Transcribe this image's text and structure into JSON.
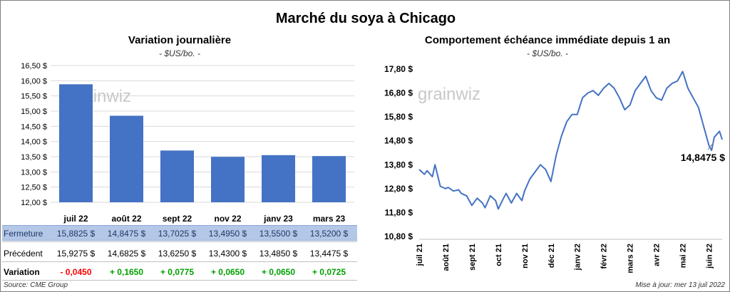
{
  "title": "Marché du soya à Chicago",
  "footer": {
    "source": "Source: CME Group",
    "updated": "Mise à jour: mer 13 juil 2022"
  },
  "watermark": "grainwiz",
  "colors": {
    "bar": "#4472c4",
    "line": "#4472c4",
    "negative": "#ff0000",
    "positive": "#00a000",
    "close_row": "#b4c7e7"
  },
  "left": {
    "title": "Variation  journalière",
    "unit": "- $US/bo. -",
    "table": {
      "rows": [
        {
          "label": "Fermeture",
          "values": [
            "15,8825  $",
            "14,8475  $",
            "13,7025  $",
            "13,4950  $",
            "13,5500  $",
            "13,5200  $"
          ]
        },
        {
          "label": "Précédent",
          "values": [
            "15,9275  $",
            "14,6825  $",
            "13,6250  $",
            "13,4300  $",
            "13,4850  $",
            "13,4475  $"
          ]
        },
        {
          "label": "Variation",
          "values": [
            "- 0,0450",
            "+ 0,1650",
            "+ 0,0775",
            "+ 0,0650",
            "+ 0,0650",
            "+ 0,0725"
          ]
        }
      ]
    }
  },
  "right": {
    "title": "Comportement  échéance immédiate depuis 1 an",
    "unit": "- $US/bo. -",
    "last_label": "14,8475 $"
  },
  "chart_data": [
    {
      "type": "bar",
      "categories": [
        "juil 22",
        "août 22",
        "sept 22",
        "nov 22",
        "janv 23",
        "mars 23"
      ],
      "values": [
        15.8825,
        14.8475,
        13.7025,
        13.495,
        13.55,
        13.52
      ],
      "ylim": [
        12,
        16.5
      ],
      "yticks": [
        12,
        12.5,
        13,
        13.5,
        14,
        14.5,
        15,
        15.5,
        16,
        16.5
      ],
      "ytick_labels": [
        "12,00 $",
        "12,50 $",
        "13,00 $",
        "13,50 $",
        "14,00 $",
        "14,50 $",
        "15,00 $",
        "15,50 $",
        "16,00 $",
        "16,50 $"
      ],
      "grid": true
    },
    {
      "type": "line",
      "x_labels": [
        "juil 21",
        "août 21",
        "sept 21",
        "oct 21",
        "nov 21",
        "déc 21",
        "janv 22",
        "févr 22",
        "mars 22",
        "avr 22",
        "mai 22",
        "juin 22"
      ],
      "x": [
        0,
        0.2,
        0.3,
        0.5,
        0.6,
        0.8,
        1.0,
        1.1,
        1.3,
        1.5,
        1.6,
        1.8,
        2.0,
        2.2,
        2.4,
        2.5,
        2.7,
        2.9,
        3.0,
        3.2,
        3.3,
        3.5,
        3.7,
        3.9,
        4.0,
        4.2,
        4.4,
        4.6,
        4.8,
        5.0,
        5.2,
        5.4,
        5.6,
        5.8,
        6.0,
        6.2,
        6.4,
        6.6,
        6.8,
        7.0,
        7.2,
        7.4,
        7.6,
        7.8,
        8.0,
        8.2,
        8.4,
        8.6,
        8.8,
        9.0,
        9.2,
        9.4,
        9.6,
        9.8,
        10.0,
        10.2,
        10.4,
        10.6,
        10.8,
        11.0,
        11.1,
        11.2,
        11.4,
        11.5
      ],
      "y": [
        13.6,
        13.4,
        13.55,
        13.3,
        13.8,
        12.9,
        12.8,
        12.85,
        12.7,
        12.75,
        12.6,
        12.5,
        12.1,
        12.4,
        12.2,
        12.0,
        12.5,
        12.3,
        11.95,
        12.4,
        12.6,
        12.2,
        12.6,
        12.3,
        12.7,
        13.2,
        13.5,
        13.8,
        13.6,
        13.1,
        14.2,
        15.0,
        15.6,
        15.9,
        15.9,
        16.6,
        16.8,
        16.9,
        16.7,
        17.0,
        17.2,
        17.0,
        16.6,
        16.1,
        16.3,
        16.9,
        17.2,
        17.5,
        16.9,
        16.6,
        16.5,
        17.0,
        17.2,
        17.3,
        17.7,
        17.0,
        16.6,
        16.2,
        15.4,
        14.6,
        14.4,
        14.95,
        15.2,
        14.85
      ],
      "ylim": [
        10.8,
        17.8
      ],
      "yticks": [
        10.8,
        11.8,
        12.8,
        13.8,
        14.8,
        15.8,
        16.8,
        17.8
      ],
      "ytick_labels": [
        "10,80 $",
        "11,80 $",
        "12,80 $",
        "13,80 $",
        "14,80 $",
        "15,80 $",
        "16,80 $",
        "17,80 $"
      ],
      "grid": false,
      "annotation": "14,8475 $"
    }
  ]
}
